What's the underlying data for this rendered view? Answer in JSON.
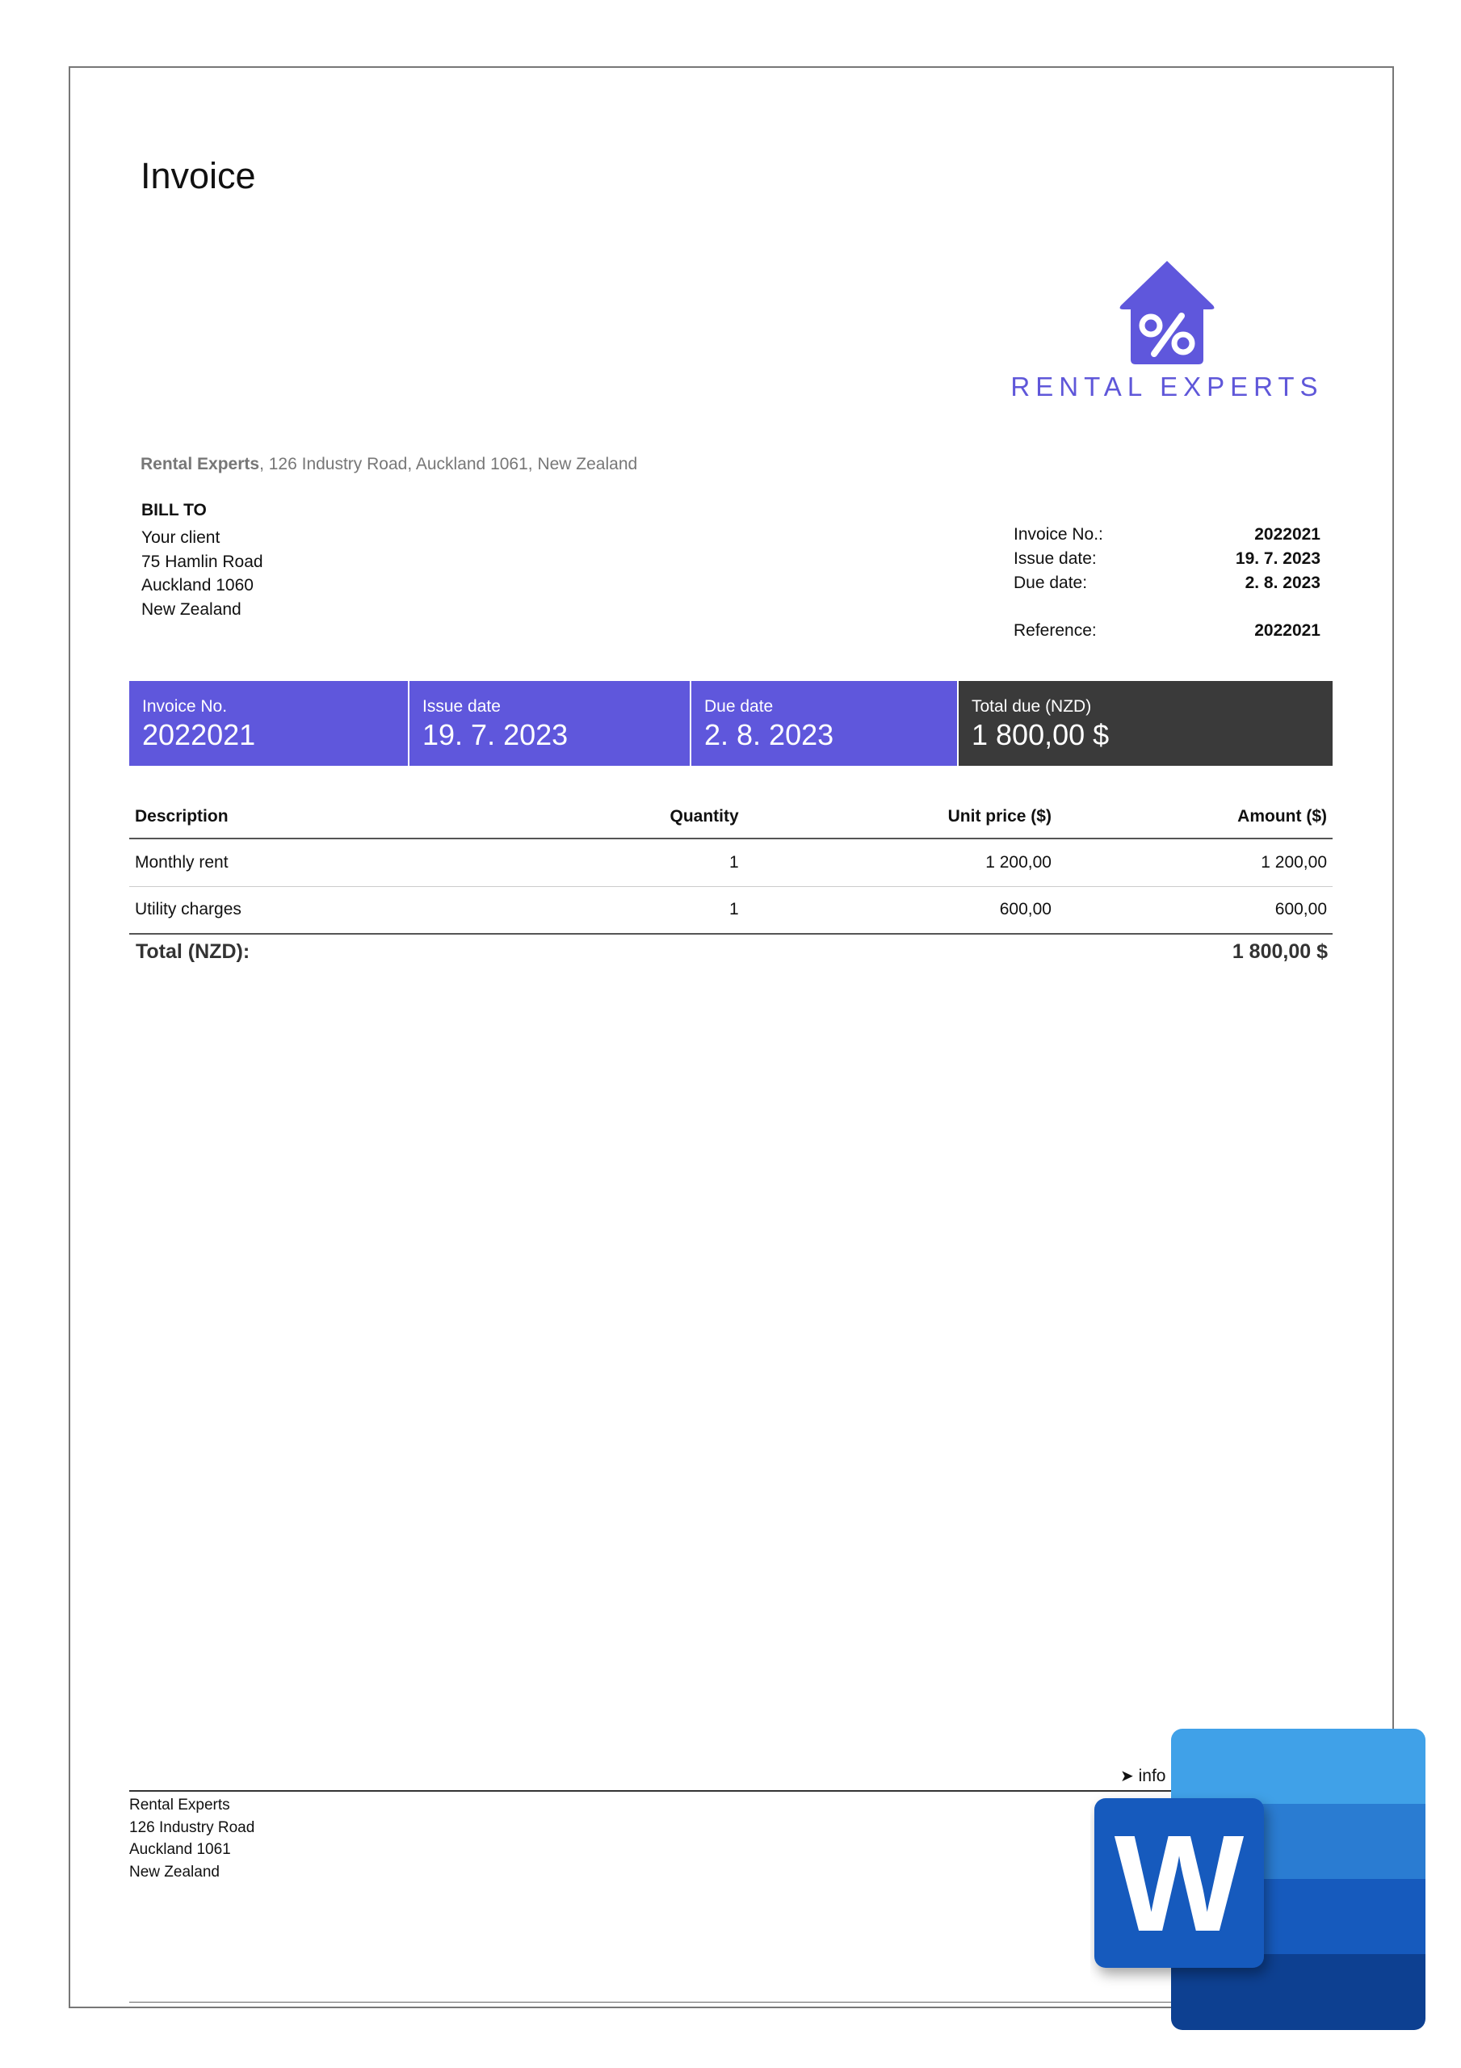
{
  "title": "Invoice",
  "brand": {
    "name": "RENTAL EXPERTS",
    "color": "#5f57dc",
    "logo_icon": "house-percent-icon"
  },
  "sender": {
    "name": "Rental Experts",
    "address": ", 126 Industry Road, Auckland 1061, New Zealand"
  },
  "bill_to": {
    "heading": "BILL TO",
    "lines": [
      "Your client",
      "75 Hamlin Road",
      "Auckland 1060",
      "New Zealand"
    ]
  },
  "meta": [
    {
      "label": "Invoice No.:",
      "value": "2022021"
    },
    {
      "label": "Issue date:",
      "value": "19. 7. 2023"
    },
    {
      "label": "Due date:",
      "value": "2. 8. 2023"
    },
    {
      "label": "Reference:",
      "value": "2022021"
    }
  ],
  "summary": [
    {
      "label": "Invoice No.",
      "value": "2022021"
    },
    {
      "label": "Issue date",
      "value": "19. 7. 2023"
    },
    {
      "label": "Due date",
      "value": "2. 8. 2023"
    },
    {
      "label": "Total due (NZD)",
      "value": "1 800,00 $"
    }
  ],
  "table": {
    "headers": [
      "Description",
      "Quantity",
      "Unit price ($)",
      "Amount ($)"
    ],
    "rows": [
      [
        "Monthly rent",
        "1",
        "1 200,00",
        "1 200,00"
      ],
      [
        "Utility charges",
        "1",
        "600,00",
        "600,00"
      ]
    ],
    "total_label": "Total (NZD):",
    "total_value": "1 800,00 $"
  },
  "footer": {
    "contact": "info",
    "lines": [
      "Rental Experts",
      "126 Industry Road",
      "Auckland 1061",
      "New Zealand"
    ]
  },
  "overlay": {
    "icon": "microsoft-word-icon",
    "letter": "W"
  }
}
